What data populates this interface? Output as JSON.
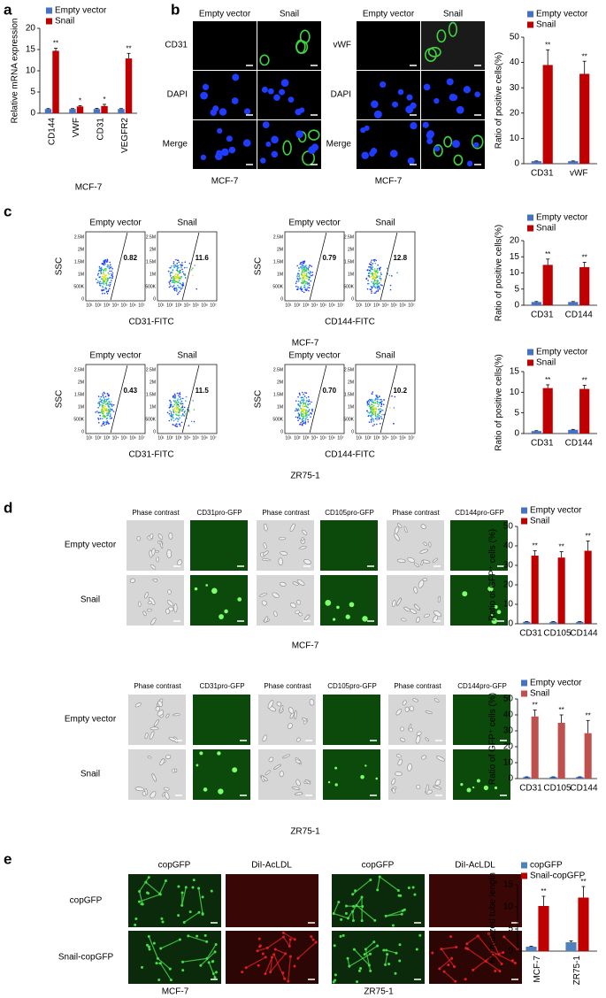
{
  "figure": {
    "panel_letters": [
      "a",
      "b",
      "c",
      "d",
      "e"
    ],
    "b_images": [
      {
        "row_labels": [
          "CD31",
          "DAPI",
          "Merge"
        ],
        "col_labels": [
          "Empty vector",
          "Snail"
        ],
        "caption": "MCF-7"
      },
      {
        "row_labels": [
          "vWF",
          "DAPI",
          "Merge"
        ],
        "col_labels": [
          "Empty vector",
          "Snail"
        ],
        "caption": "MCF-7"
      }
    ],
    "c_flow": {
      "y_label": "SSC",
      "y_ticks": [
        "2.5M",
        "2M",
        "1.5M",
        "1M",
        "500K",
        "0"
      ],
      "x_ticks": [
        "10¹",
        "10²",
        "10³",
        "10⁴",
        "10⁵",
        "10⁶",
        "10⁷"
      ],
      "groups": [
        {
          "cell_line": "MCF-7",
          "pairs": [
            {
              "marker": "CD31-FITC",
              "col_labels": [
                "Empty vector",
                "Snail"
              ],
              "percents": [
                "0.82",
                "11.6"
              ]
            },
            {
              "marker": "CD144-FITC",
              "col_labels": [
                "Empty vector",
                "Snail"
              ],
              "percents": [
                "0.79",
                "12.8"
              ]
            }
          ]
        },
        {
          "cell_line": "ZR75-1",
          "pairs": [
            {
              "marker": "CD31-FITC",
              "col_labels": [
                "Empty vector",
                "Snail"
              ],
              "percents": [
                "0.43",
                "11.5"
              ]
            },
            {
              "marker": "CD144-FITC",
              "col_labels": [
                "Empty vector",
                "Snail"
              ],
              "percents": [
                "0.70",
                "10.2"
              ]
            }
          ]
        }
      ]
    },
    "d_images": [
      {
        "col_labels": [
          "Phase contrast",
          "CD31pro-GFP",
          "Phase contrast",
          "CD105pro-GFP",
          "Phase contrast",
          "CD144pro-GFP"
        ],
        "row_labels": [
          "Empty vector",
          "Snail"
        ],
        "caption": "MCF-7"
      },
      {
        "col_labels": [
          "Phase contrast",
          "CD31pro-GFP",
          "Phase contrast",
          "CD105pro-GFP",
          "Phase contrast",
          "CD144pro-GFP"
        ],
        "row_labels": [
          "Empty vector",
          "Snail"
        ],
        "caption": "ZR75-1"
      }
    ],
    "e_images": {
      "col_labels": [
        "copGFP",
        "DiI-AcLDL",
        "copGFP",
        "DiI-AcLDL"
      ],
      "row_labels": [
        "copGFP",
        "Snail-copGFP"
      ],
      "captions": [
        "MCF-7",
        "ZR75-1"
      ]
    }
  },
  "chart_data": [
    {
      "type": "bar",
      "ylabel": "Relative mRNA expression",
      "xlabel": "MCF-7",
      "categories": [
        "CD144",
        "VWF",
        "CD31",
        "VEGFR2"
      ],
      "series": [
        {
          "name": "Empty vector",
          "color": "#4472c4",
          "values": [
            1,
            1,
            1,
            1
          ],
          "errors": [
            0.1,
            0.1,
            0.15,
            0.1
          ]
        },
        {
          "name": "Snail",
          "color": "#c00000",
          "values": [
            14.7,
            1.6,
            1.7,
            12.9
          ],
          "errors": [
            0.6,
            0.2,
            0.4,
            1.2
          ]
        }
      ],
      "significance": [
        "**",
        "*",
        "*",
        "**"
      ],
      "ylim": [
        0,
        20
      ],
      "yticks": [
        0,
        5,
        10,
        15,
        20
      ]
    },
    {
      "type": "bar",
      "ylabel": "Ratio of positive cells(%)",
      "categories": [
        "CD31",
        "vWF"
      ],
      "series": [
        {
          "name": "Empty vector",
          "color": "#4472c4",
          "values": [
            1,
            1
          ],
          "errors": [
            0.1,
            0.1
          ]
        },
        {
          "name": "Snail",
          "color": "#c00000",
          "values": [
            39,
            35.5
          ],
          "errors": [
            6,
            5
          ]
        }
      ],
      "significance": [
        "**",
        "**"
      ],
      "ylim": [
        0,
        50
      ],
      "yticks": [
        0,
        10,
        20,
        30,
        40,
        50
      ]
    },
    {
      "type": "bar",
      "ylabel": "Ratio of positive cells(%)",
      "categories": [
        "CD31",
        "CD144"
      ],
      "series": [
        {
          "name": "Empty vector",
          "color": "#4472c4",
          "values": [
            1,
            1
          ],
          "errors": [
            0.15,
            0.15
          ]
        },
        {
          "name": "Snail",
          "color": "#c00000",
          "values": [
            12.5,
            11.8
          ],
          "errors": [
            1.8,
            1.5
          ]
        }
      ],
      "significance": [
        "**",
        "**"
      ],
      "ylim": [
        0,
        20
      ],
      "yticks": [
        0,
        5,
        10,
        15,
        20
      ]
    },
    {
      "type": "bar",
      "ylabel": "Ratio of positive cells(%)",
      "categories": [
        "CD31",
        "CD144"
      ],
      "series": [
        {
          "name": "Empty vector",
          "color": "#4472c4",
          "values": [
            0.6,
            0.9
          ],
          "errors": [
            0.1,
            0.1
          ]
        },
        {
          "name": "Snail",
          "color": "#c00000",
          "values": [
            11,
            10.8
          ],
          "errors": [
            0.8,
            0.9
          ]
        }
      ],
      "significance": [
        "**",
        "**"
      ],
      "ylim": [
        0,
        15
      ],
      "yticks": [
        0,
        5,
        10,
        15
      ]
    },
    {
      "type": "bar",
      "ylabel": "Ratio of GFP⁺ cells (%)",
      "categories": [
        "CD31",
        "CD105",
        "CD144"
      ],
      "series": [
        {
          "name": "Empty vector",
          "color": "#4472c4",
          "values": [
            1,
            1,
            1
          ],
          "errors": [
            0.1,
            0.1,
            0.1
          ]
        },
        {
          "name": "Snail",
          "color": "#c00000",
          "values": [
            35,
            34,
            37.5
          ],
          "errors": [
            2.5,
            3,
            5
          ]
        }
      ],
      "significance": [
        "**",
        "**",
        "**"
      ],
      "ylim": [
        0,
        50
      ],
      "yticks": [
        0,
        10,
        20,
        30,
        40,
        50
      ]
    },
    {
      "type": "bar",
      "ylabel": "Ratio of GFP⁺ cells (%)",
      "categories": [
        "CD31",
        "CD105",
        "CD144"
      ],
      "series": [
        {
          "name": "Empty vector",
          "color": "#4472c4",
          "values": [
            1,
            1,
            1
          ],
          "errors": [
            0.1,
            0.1,
            0.1
          ]
        },
        {
          "name": "Snail",
          "color": "#c0504d",
          "values": [
            39,
            35,
            28.5
          ],
          "errors": [
            4,
            5,
            8
          ]
        }
      ],
      "significance": [
        "**",
        "**",
        "**"
      ],
      "ylim": [
        0,
        50
      ],
      "yticks": [
        0,
        10,
        20,
        30,
        40,
        50
      ]
    },
    {
      "type": "bar",
      "ylabel": "Normalized tube length",
      "categories": [
        "MCF-7",
        "ZR75-1"
      ],
      "series": [
        {
          "name": "copGFP",
          "color": "#4f81bd",
          "values": [
            1,
            2
          ],
          "errors": [
            0.1,
            0.3
          ]
        },
        {
          "name": "Snail-copGFP",
          "color": "#c00000",
          "values": [
            10.2,
            12.1
          ],
          "errors": [
            2.2,
            2.5
          ]
        }
      ],
      "significance": [
        "**",
        "**"
      ],
      "ylim": [
        0,
        15
      ],
      "yticks": [
        0,
        5,
        10,
        15
      ]
    }
  ]
}
